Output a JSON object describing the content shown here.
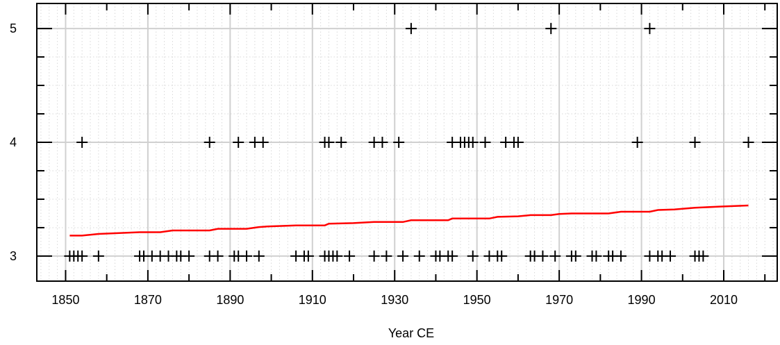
{
  "chart_data": {
    "type": "scatter",
    "title": "",
    "xlabel": "Year CE",
    "ylabel": "",
    "xlim": [
      1843,
      2023
    ],
    "ylim": [
      2.78,
      5.22
    ],
    "xticks": [
      1850,
      1870,
      1890,
      1910,
      1930,
      1950,
      1970,
      1990,
      2010
    ],
    "xminor": [
      1860,
      1880,
      1900,
      1920,
      1940,
      1960,
      1980,
      2000,
      2020
    ],
    "yticks": [
      3,
      4,
      5
    ],
    "ygrid": [
      3.25,
      3.5,
      3.75,
      4.25,
      4.5,
      4.75
    ],
    "xgrid_minor_step": 2,
    "grid": true,
    "marker": "plus",
    "colors": {
      "points": "#000000",
      "trend": "#ff0000",
      "grid_major": "#d0d0d0",
      "grid_minor": "#d8d8d8"
    },
    "series": [
      {
        "values": [
          [
            1851,
            3
          ],
          [
            1852,
            3
          ],
          [
            1853,
            3
          ],
          [
            1854,
            3
          ],
          [
            1858,
            3
          ],
          [
            1868,
            3
          ],
          [
            1869,
            3
          ],
          [
            1871,
            3
          ],
          [
            1873,
            3
          ],
          [
            1875,
            3
          ],
          [
            1877,
            3
          ],
          [
            1878,
            3
          ],
          [
            1880,
            3
          ],
          [
            1885,
            3
          ],
          [
            1887,
            3
          ],
          [
            1891,
            3
          ],
          [
            1892,
            3
          ],
          [
            1894,
            3
          ],
          [
            1897,
            3
          ],
          [
            1906,
            3
          ],
          [
            1908,
            3
          ],
          [
            1909,
            3
          ],
          [
            1913,
            3
          ],
          [
            1914,
            3
          ],
          [
            1915,
            3
          ],
          [
            1916,
            3
          ],
          [
            1919,
            3
          ],
          [
            1925,
            3
          ],
          [
            1928,
            3
          ],
          [
            1932,
            3
          ],
          [
            1936,
            3
          ],
          [
            1940,
            3
          ],
          [
            1941,
            3
          ],
          [
            1943,
            3
          ],
          [
            1944,
            3
          ],
          [
            1949,
            3
          ],
          [
            1953,
            3
          ],
          [
            1955,
            3
          ],
          [
            1956,
            3
          ],
          [
            1963,
            3
          ],
          [
            1964,
            3
          ],
          [
            1966,
            3
          ],
          [
            1969,
            3
          ],
          [
            1973,
            3
          ],
          [
            1974,
            3
          ],
          [
            1978,
            3
          ],
          [
            1979,
            3
          ],
          [
            1982,
            3
          ],
          [
            1983,
            3
          ],
          [
            1985,
            3
          ],
          [
            1992,
            3
          ],
          [
            1994,
            3
          ],
          [
            1995,
            3
          ],
          [
            1997,
            3
          ],
          [
            2003,
            3
          ],
          [
            2004,
            3
          ],
          [
            2005,
            3
          ],
          [
            1854,
            4
          ],
          [
            1885,
            4
          ],
          [
            1892,
            4
          ],
          [
            1896,
            4
          ],
          [
            1898,
            4
          ],
          [
            1913,
            4
          ],
          [
            1914,
            4
          ],
          [
            1917,
            4
          ],
          [
            1925,
            4
          ],
          [
            1927,
            4
          ],
          [
            1931,
            4
          ],
          [
            1944,
            4
          ],
          [
            1946,
            4
          ],
          [
            1947,
            4
          ],
          [
            1948,
            4
          ],
          [
            1949,
            4
          ],
          [
            1952,
            4
          ],
          [
            1957,
            4
          ],
          [
            1959,
            4
          ],
          [
            1960,
            4
          ],
          [
            1989,
            4
          ],
          [
            2003,
            4
          ],
          [
            2016,
            4
          ],
          [
            1934,
            5
          ],
          [
            1968,
            5
          ],
          [
            1992,
            5
          ]
        ]
      },
      {
        "values": [
          [
            1851,
            3.18
          ],
          [
            1854,
            3.18
          ],
          [
            1858,
            3.195
          ],
          [
            1868,
            3.21
          ],
          [
            1873,
            3.21
          ],
          [
            1876,
            3.225
          ],
          [
            1885,
            3.225
          ],
          [
            1887,
            3.24
          ],
          [
            1894,
            3.24
          ],
          [
            1897,
            3.255
          ],
          [
            1899,
            3.26
          ],
          [
            1906,
            3.27
          ],
          [
            1913,
            3.27
          ],
          [
            1914,
            3.285
          ],
          [
            1920,
            3.29
          ],
          [
            1925,
            3.3
          ],
          [
            1932,
            3.3
          ],
          [
            1934,
            3.315
          ],
          [
            1943,
            3.315
          ],
          [
            1944,
            3.33
          ],
          [
            1953,
            3.33
          ],
          [
            1955,
            3.345
          ],
          [
            1960,
            3.35
          ],
          [
            1963,
            3.36
          ],
          [
            1968,
            3.36
          ],
          [
            1970,
            3.37
          ],
          [
            1973,
            3.375
          ],
          [
            1982,
            3.375
          ],
          [
            1985,
            3.39
          ],
          [
            1992,
            3.39
          ],
          [
            1994,
            3.405
          ],
          [
            1998,
            3.41
          ],
          [
            2003,
            3.425
          ],
          [
            2009,
            3.435
          ],
          [
            2016,
            3.445
          ]
        ]
      }
    ]
  }
}
